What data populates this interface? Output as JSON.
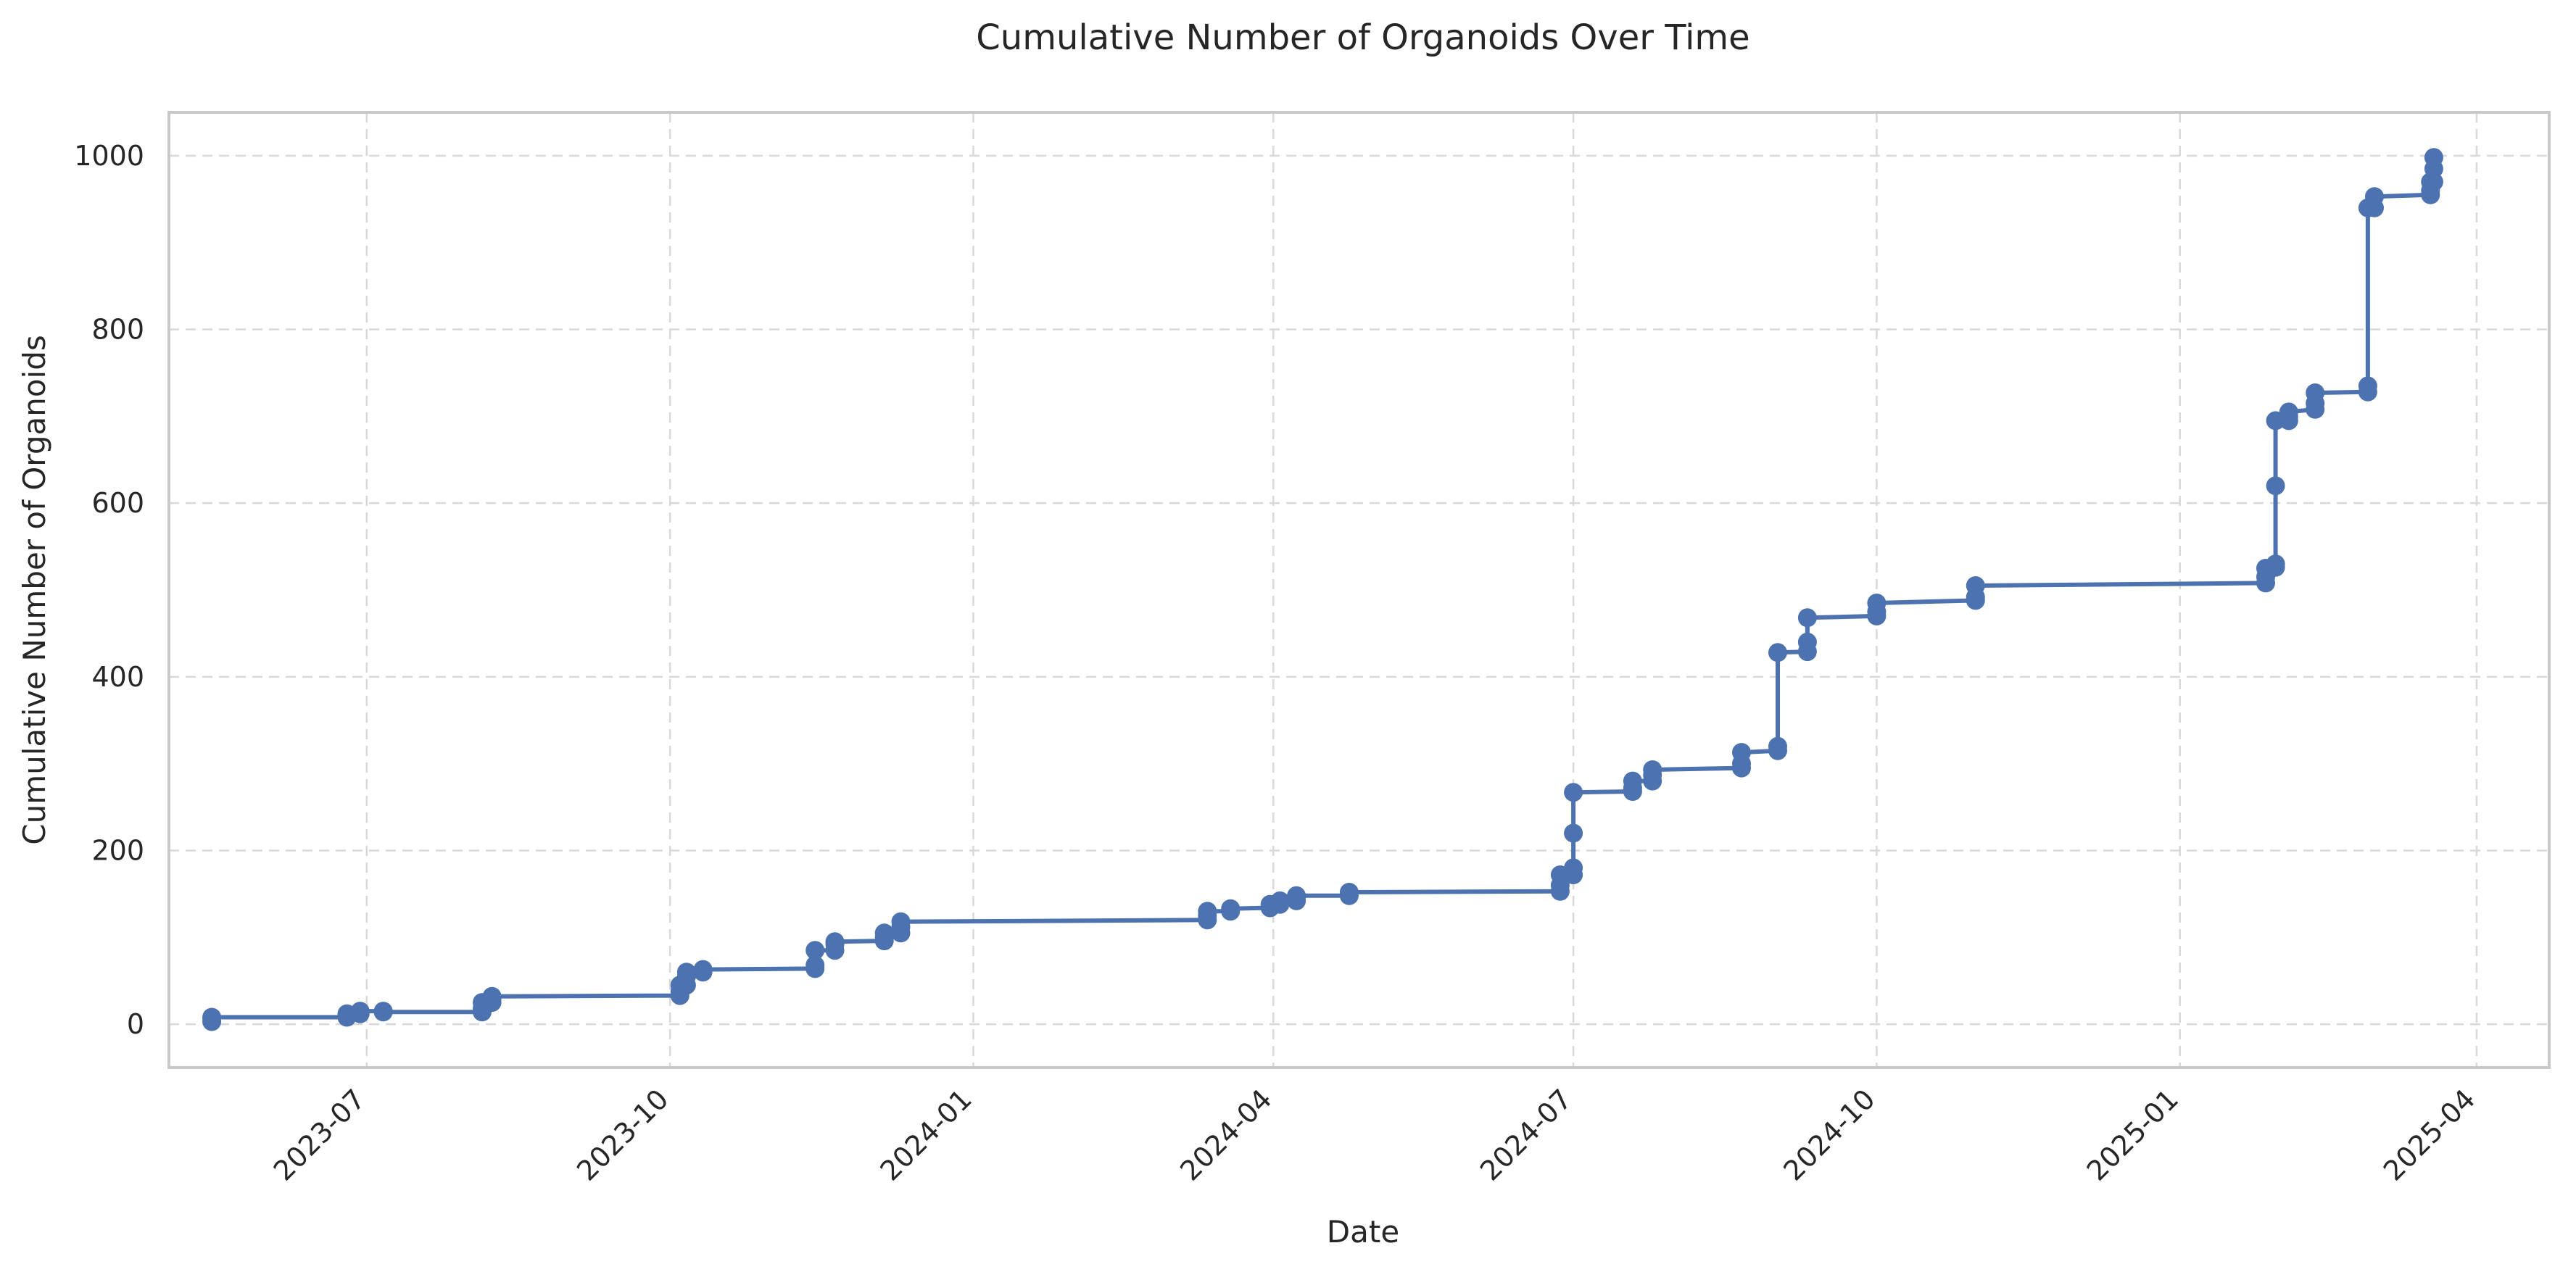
{
  "chart_data": {
    "type": "line",
    "title": "Cumulative Number of Organoids Over Time",
    "xlabel": "Date",
    "ylabel": "Cumulative Number of Organoids",
    "xlim": [
      "2023-05-02",
      "2025-04-23"
    ],
    "ylim": [
      -50,
      1050
    ],
    "x_ticks": [
      "2023-07",
      "2023-10",
      "2024-01",
      "2024-04",
      "2024-07",
      "2024-10",
      "2025-01",
      "2025-04"
    ],
    "y_ticks": [
      0,
      200,
      400,
      600,
      800,
      1000
    ],
    "grid": true,
    "legend": "none",
    "color": "#4c72b0",
    "series": [
      {
        "x": [
          "2023-05-15",
          "2023-05-15",
          "2023-05-15",
          "2023-06-25",
          "2023-06-25",
          "2023-06-29",
          "2023-06-29",
          "2023-07-06",
          "2023-07-06",
          "2023-08-05",
          "2023-08-05",
          "2023-08-05",
          "2023-08-08",
          "2023-08-08",
          "2023-08-08",
          "2023-10-04",
          "2023-10-04",
          "2023-10-04",
          "2023-10-06",
          "2023-10-06",
          "2023-10-06",
          "2023-10-11",
          "2023-10-11",
          "2023-11-14",
          "2023-11-14",
          "2023-11-14",
          "2023-11-20",
          "2023-11-20",
          "2023-11-20",
          "2023-12-05",
          "2023-12-05",
          "2023-12-05",
          "2023-12-10",
          "2023-12-10",
          "2023-12-10",
          "2024-03-12",
          "2024-03-12",
          "2024-03-12",
          "2024-03-19",
          "2024-03-19",
          "2024-03-31",
          "2024-03-31",
          "2024-04-03",
          "2024-04-03",
          "2024-04-08",
          "2024-04-08",
          "2024-04-08",
          "2024-04-24",
          "2024-04-24",
          "2024-06-27",
          "2024-06-27",
          "2024-06-27",
          "2024-07-01",
          "2024-07-01",
          "2024-07-01",
          "2024-07-01",
          "2024-07-19",
          "2024-07-19",
          "2024-07-19",
          "2024-07-25",
          "2024-07-25",
          "2024-07-25",
          "2024-08-21",
          "2024-08-21",
          "2024-08-21",
          "2024-09-01",
          "2024-09-01",
          "2024-09-01",
          "2024-09-10",
          "2024-09-10",
          "2024-09-10",
          "2024-10-01",
          "2024-10-01",
          "2024-10-01",
          "2024-10-31",
          "2024-10-31",
          "2024-10-31",
          "2025-01-27",
          "2025-01-27",
          "2025-01-27",
          "2025-01-30",
          "2025-01-30",
          "2025-01-30",
          "2025-01-30",
          "2025-02-03",
          "2025-02-03",
          "2025-02-03",
          "2025-02-11",
          "2025-02-11",
          "2025-02-11",
          "2025-02-27",
          "2025-02-27",
          "2025-02-27",
          "2025-03-01",
          "2025-03-01",
          "2025-03-18",
          "2025-03-18",
          "2025-03-18",
          "2025-03-19",
          "2025-03-19",
          "2025-03-19"
        ],
        "y": [
          3,
          7,
          8,
          8,
          12,
          12,
          15,
          15,
          14,
          14,
          18,
          25,
          25,
          29,
          32,
          33,
          38,
          45,
          45,
          55,
          60,
          60,
          63,
          64,
          68,
          85,
          85,
          92,
          95,
          96,
          100,
          105,
          105,
          112,
          118,
          120,
          125,
          130,
          130,
          133,
          134,
          138,
          138,
          142,
          142,
          147,
          148,
          148,
          152,
          153,
          160,
          172,
          172,
          180,
          220,
          267,
          268,
          272,
          280,
          280,
          287,
          293,
          295,
          300,
          313,
          315,
          320,
          428,
          429,
          440,
          468,
          470,
          475,
          485,
          488,
          492,
          505,
          508,
          515,
          525,
          526,
          530,
          620,
          695,
          695,
          700,
          705,
          708,
          715,
          727,
          728,
          735,
          940,
          940,
          953,
          955,
          960,
          970,
          970,
          985,
          998
        ]
      }
    ]
  }
}
